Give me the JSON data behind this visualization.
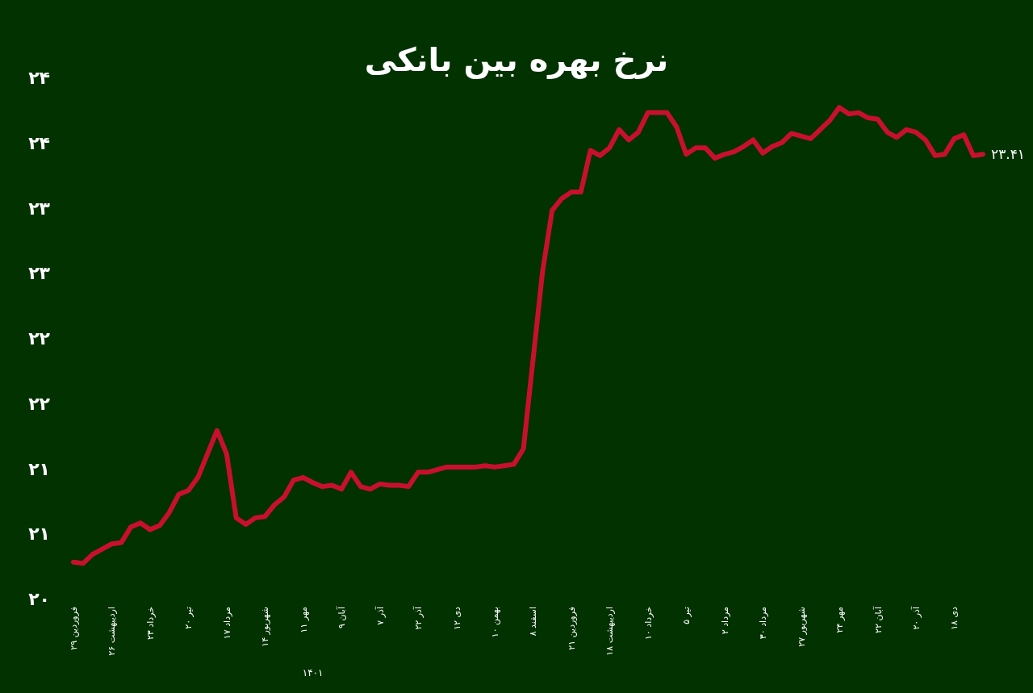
{
  "chart_data": {
    "type": "line",
    "title": "نرخ بهره بین بانکی",
    "categories": [
      "۲۹ فروردین",
      null,
      null,
      null,
      "۲۶ اردیبهشت",
      null,
      null,
      null,
      "۲۳ خرداد",
      null,
      null,
      null,
      "۲۰ تیر",
      null,
      null,
      null,
      "۱۷ مرداد",
      null,
      null,
      null,
      "۱۴ شهریور",
      null,
      null,
      null,
      "۱۱ مهر",
      null,
      null,
      null,
      "۹ آبان",
      null,
      null,
      null,
      "۷ آذر",
      null,
      null,
      null,
      "۲۲ آذر",
      null,
      null,
      null,
      "۱۲ دی",
      null,
      null,
      null,
      "۱۰ بهمن",
      null,
      null,
      null,
      "۸ اسفند",
      null,
      null,
      null,
      "۲۱ فروردین",
      null,
      null,
      null,
      "۱۸ اردیبهشت",
      null,
      null,
      null,
      "۱۰ خرداد",
      null,
      null,
      null,
      "۵ تیر",
      null,
      null,
      null,
      "۲ مرداد",
      null,
      null,
      null,
      "۳۰ مرداد",
      null,
      null,
      null,
      "۲۷ شهریور",
      null,
      null,
      null,
      "۲۴ مهر",
      null,
      null,
      null,
      "۲۲ آبان",
      null,
      null,
      null,
      "۲۰ آذر",
      null,
      null,
      null,
      "۱۸ دی",
      null,
      null,
      null
    ],
    "values": [
      20.28,
      20.27,
      20.34,
      20.38,
      20.42,
      20.43,
      20.55,
      20.58,
      20.53,
      20.56,
      20.66,
      20.8,
      20.83,
      20.93,
      21.11,
      21.29,
      21.11,
      20.62,
      20.57,
      20.62,
      20.63,
      20.72,
      20.78,
      20.91,
      20.93,
      20.89,
      20.86,
      20.87,
      20.84,
      20.97,
      20.86,
      20.84,
      20.88,
      20.87,
      20.87,
      20.86,
      20.97,
      20.97,
      20.99,
      21.01,
      21.01,
      21.01,
      21.01,
      21.02,
      21.01,
      21.02,
      21.03,
      21.15,
      21.83,
      22.51,
      22.98,
      23.07,
      23.12,
      23.12,
      23.44,
      23.4,
      23.46,
      23.6,
      23.52,
      23.58,
      23.73,
      23.73,
      23.73,
      23.62,
      23.41,
      23.46,
      23.46,
      23.38,
      23.41,
      23.43,
      23.47,
      23.52,
      23.42,
      23.47,
      23.5,
      23.57,
      23.55,
      23.53,
      23.6,
      23.67,
      23.77,
      23.72,
      23.73,
      23.69,
      23.68,
      23.58,
      23.54,
      23.6,
      23.58,
      23.52,
      23.4,
      23.41,
      23.53,
      23.56,
      23.4,
      23.41
    ],
    "color": "#c8102e",
    "ylim": [
      20,
      24
    ],
    "yticks": [
      {
        "value": 20,
        "label": "۲۰"
      },
      {
        "value": 20.5,
        "label": "۲۱"
      },
      {
        "value": 21,
        "label": "۲۱"
      },
      {
        "value": 21.5,
        "label": "۲۲"
      },
      {
        "value": 22,
        "label": "۲۲"
      },
      {
        "value": 22.5,
        "label": "۲۳"
      },
      {
        "value": 23,
        "label": "۲۳"
      },
      {
        "value": 23.5,
        "label": "۲۴"
      },
      {
        "value": 24,
        "label": "۲۴"
      }
    ],
    "annotations": [
      "۲۳.۴۱",
      "۱۴۰۱"
    ]
  }
}
